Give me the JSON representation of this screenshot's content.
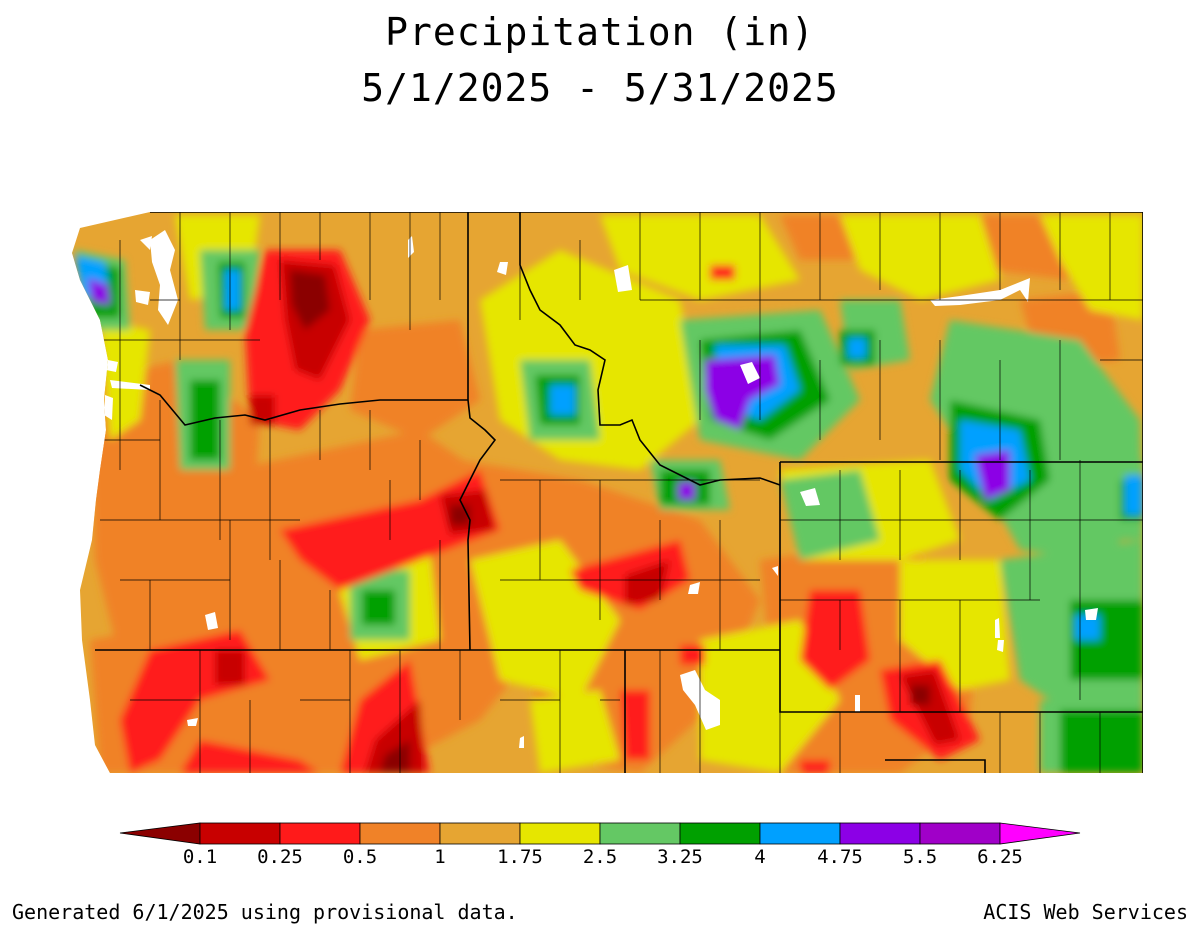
{
  "title": {
    "line1": "Precipitation (in)",
    "line2": "5/1/2025 - 5/31/2025"
  },
  "legend": {
    "labels": [
      "0.1",
      "0.25",
      "0.5",
      "1",
      "1.75",
      "2.5",
      "3.25",
      "4",
      "4.75",
      "5.5",
      "6.25"
    ],
    "colors": [
      "#8b0000",
      "#c80000",
      "#ff1a1a",
      "#f08228",
      "#e6a532",
      "#e6e600",
      "#64c864",
      "#00a000",
      "#00a0ff",
      "#8c00e6",
      "#a000c8",
      "#ff00ff"
    ]
  },
  "colors": {
    "land_base": "#e6a532",
    "water": "#ffffff",
    "boundary_state": "#000000",
    "boundary_county": "#000000"
  },
  "footer": {
    "left": "Generated 6/1/2025 using provisional data.",
    "right": "ACIS Web Services"
  }
}
